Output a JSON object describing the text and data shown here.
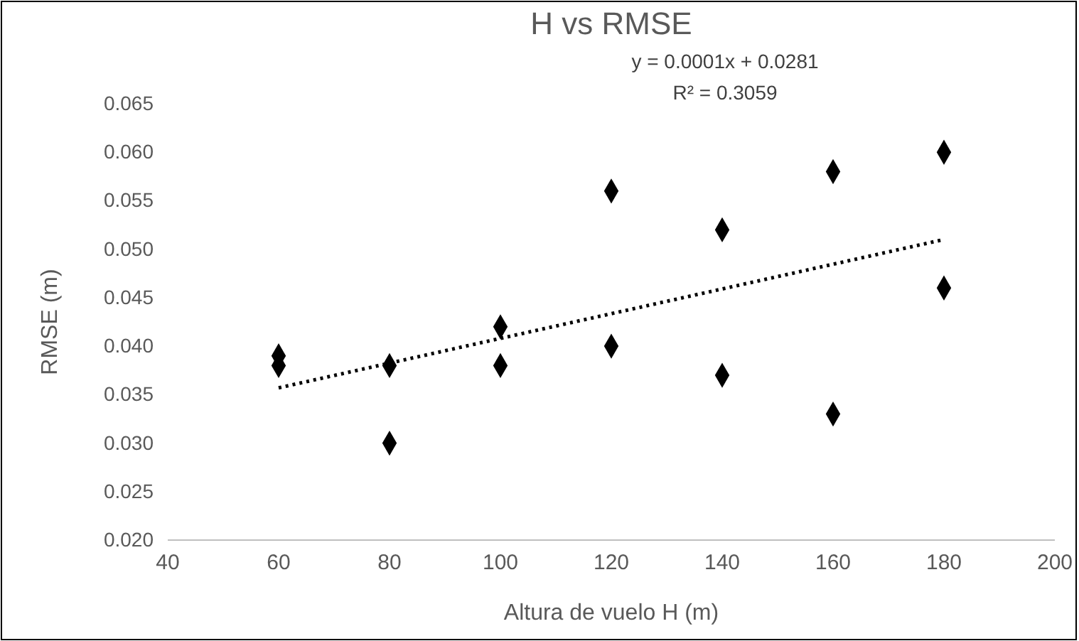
{
  "chart_data": {
    "type": "scatter",
    "title": "H vs RMSE",
    "xlabel": "Altura de vuelo H (m)",
    "ylabel": "RMSE (m)",
    "xlim": [
      40,
      200
    ],
    "xticks": [
      40,
      60,
      80,
      100,
      120,
      140,
      160,
      180,
      200
    ],
    "ylim": [
      0.02,
      0.065
    ],
    "yticks": [
      {
        "value": 0.02,
        "label": "0.020"
      },
      {
        "value": 0.025,
        "label": "0.025"
      },
      {
        "value": 0.03,
        "label": "0.030"
      },
      {
        "value": 0.035,
        "label": "0.035"
      },
      {
        "value": 0.04,
        "label": "0.040"
      },
      {
        "value": 0.045,
        "label": "0.045"
      },
      {
        "value": 0.05,
        "label": "0.050"
      },
      {
        "value": 0.055,
        "label": "0.055"
      },
      {
        "value": 0.06,
        "label": "0.060"
      },
      {
        "value": 0.065,
        "label": "0.065"
      }
    ],
    "grid": false,
    "annotations": [
      "y = 0.0001x + 0.0281",
      "R² = 0.3059"
    ],
    "series": [
      {
        "color": "#000000",
        "marker": "diamond",
        "x": [
          60,
          60,
          80,
          80,
          100,
          100,
          120,
          120,
          140,
          140,
          160,
          160,
          180,
          180
        ],
        "values": [
          0.039,
          0.038,
          0.038,
          0.03,
          0.042,
          0.038,
          0.056,
          0.04,
          0.052,
          0.037,
          0.058,
          0.033,
          0.06,
          0.046
        ]
      },
      {
        "type": "line",
        "color": "#000000",
        "marker": "none",
        "line_style": "dotted",
        "x": [
          60,
          180
        ],
        "values": [
          0.0357,
          0.051
        ]
      }
    ]
  }
}
